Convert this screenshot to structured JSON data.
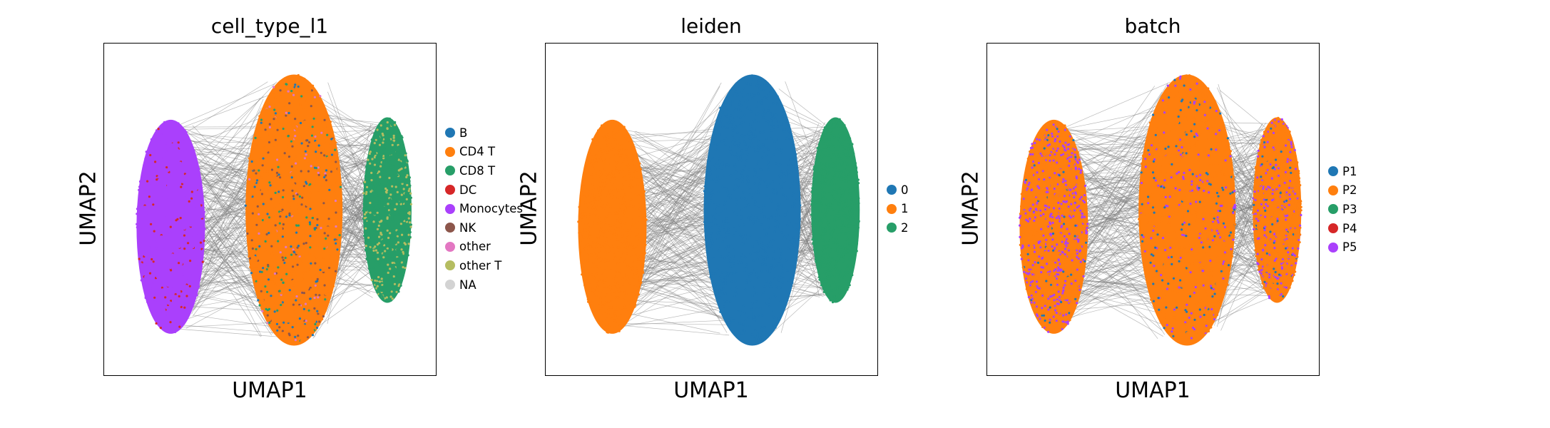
{
  "chart_data": [
    {
      "type": "scatter",
      "title": "cell_type_l1",
      "xlabel": "UMAP1",
      "ylabel": "UMAP2",
      "ticks": "none",
      "grid": false,
      "legend_position": "right",
      "edges": {
        "color": "#808080",
        "drawn": true
      },
      "legend": [
        {
          "label": "B",
          "color": "#1f77b4"
        },
        {
          "label": "CD4 T",
          "color": "#ff7f0e"
        },
        {
          "label": "CD8 T",
          "color": "#279e68"
        },
        {
          "label": "DC",
          "color": "#d62728"
        },
        {
          "label": "Monocytes",
          "color": "#aa40fc"
        },
        {
          "label": "NK",
          "color": "#8c564b"
        },
        {
          "label": "other",
          "color": "#e377c2"
        },
        {
          "label": "other T",
          "color": "#b5bd61"
        },
        {
          "label": "NA",
          "color": "#d3d3d3"
        }
      ],
      "clusters": [
        {
          "label": "Monocytes",
          "x": 0.2,
          "y": 0.55,
          "mix": {
            "Monocytes": 0.9,
            "DC": 0.1
          }
        },
        {
          "label": "CD4 T",
          "x": 0.57,
          "y": 0.5,
          "mix": {
            "CD4 T": 0.62,
            "NK": 0.14,
            "B": 0.1,
            "CD8 T": 0.08,
            "other": 0.06
          }
        },
        {
          "label": "CD8 T",
          "x": 0.85,
          "y": 0.5,
          "mix": {
            "CD8 T": 0.8,
            "other T": 0.2
          }
        }
      ]
    },
    {
      "type": "scatter",
      "title": "leiden",
      "xlabel": "UMAP1",
      "ylabel": "UMAP2",
      "ticks": "none",
      "grid": false,
      "legend_position": "right",
      "edges": {
        "color": "#808080",
        "drawn": true
      },
      "legend": [
        {
          "label": "0",
          "color": "#1f77b4"
        },
        {
          "label": "1",
          "color": "#ff7f0e"
        },
        {
          "label": "2",
          "color": "#279e68"
        }
      ],
      "clusters": [
        {
          "label": "1",
          "x": 0.2,
          "y": 0.55,
          "mix": {
            "1": 1.0
          }
        },
        {
          "label": "0",
          "x": 0.62,
          "y": 0.5,
          "mix": {
            "0": 1.0
          }
        },
        {
          "label": "2",
          "x": 0.87,
          "y": 0.5,
          "mix": {
            "2": 1.0
          }
        }
      ]
    },
    {
      "type": "scatter",
      "title": "batch",
      "xlabel": "UMAP1",
      "ylabel": "UMAP2",
      "ticks": "none",
      "grid": false,
      "legend_position": "right",
      "edges": {
        "color": "#808080",
        "drawn": true
      },
      "legend": [
        {
          "label": "P1",
          "color": "#1f77b4"
        },
        {
          "label": "P2",
          "color": "#ff7f0e"
        },
        {
          "label": "P3",
          "color": "#279e68"
        },
        {
          "label": "P4",
          "color": "#d62728"
        },
        {
          "label": "P5",
          "color": "#aa40fc"
        }
      ],
      "clusters": [
        {
          "label": "left",
          "x": 0.2,
          "y": 0.55,
          "mix": {
            "P2": 0.55,
            "P5": 0.4,
            "P1": 0.05
          }
        },
        {
          "label": "center",
          "x": 0.6,
          "y": 0.5,
          "mix": {
            "P2": 0.7,
            "P5": 0.18,
            "P1": 0.12
          }
        },
        {
          "label": "right",
          "x": 0.87,
          "y": 0.5,
          "mix": {
            "P2": 0.75,
            "P5": 0.2,
            "P1": 0.05
          }
        }
      ]
    }
  ]
}
